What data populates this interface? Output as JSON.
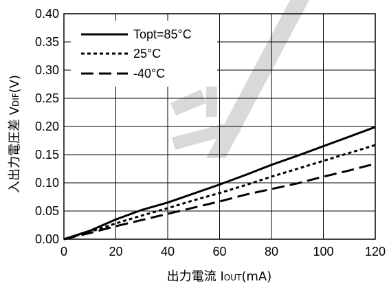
{
  "chart_data": {
    "type": "line",
    "xlabel_main": "出力電流 I",
    "xlabel_sub": "OUT",
    "xlabel_unit": "(mA)",
    "ylabel_main": "入出力電圧差 V",
    "ylabel_sub": "DIF",
    "ylabel_unit": "(V)",
    "xlim": [
      0,
      120
    ],
    "ylim": [
      0,
      0.4
    ],
    "xticks": [
      0,
      20,
      40,
      60,
      80,
      100,
      120
    ],
    "xtick_labels": [
      "0",
      "20",
      "40",
      "60",
      "80",
      "100",
      "120"
    ],
    "yticks": [
      0,
      0.05,
      0.1,
      0.15,
      0.2,
      0.25,
      0.3,
      0.35,
      0.4
    ],
    "ytick_labels": [
      "0.00",
      "0.05",
      "0.10",
      "0.15",
      "0.20",
      "0.25",
      "0.30",
      "0.35",
      "0.40"
    ],
    "grid": true,
    "legend_position": "top-left",
    "series": [
      {
        "name": "Topt=85°C",
        "style": "solid",
        "x": [
          0,
          10,
          20,
          30,
          40,
          50,
          60,
          70,
          80,
          90,
          100,
          110,
          120
        ],
        "y": [
          0,
          0.015,
          0.035,
          0.052,
          0.065,
          0.081,
          0.097,
          0.114,
          0.132,
          0.148,
          0.165,
          0.182,
          0.199
        ]
      },
      {
        "name": "25°C",
        "style": "dotted",
        "x": [
          0,
          10,
          20,
          30,
          40,
          50,
          60,
          70,
          80,
          90,
          100,
          110,
          120
        ],
        "y": [
          0,
          0.013,
          0.028,
          0.042,
          0.055,
          0.069,
          0.082,
          0.096,
          0.111,
          0.125,
          0.139,
          0.153,
          0.167
        ]
      },
      {
        "name": "-40°C",
        "style": "dashed",
        "x": [
          0,
          10,
          20,
          30,
          40,
          50,
          60,
          70,
          80,
          90,
          100,
          110,
          120
        ],
        "y": [
          0,
          0.011,
          0.023,
          0.034,
          0.045,
          0.056,
          0.067,
          0.079,
          0.089,
          0.099,
          0.111,
          0.122,
          0.134
        ]
      }
    ],
    "colors": {
      "line": "#000000",
      "grid": "#000000",
      "watermark": "#d9d9d9"
    }
  }
}
